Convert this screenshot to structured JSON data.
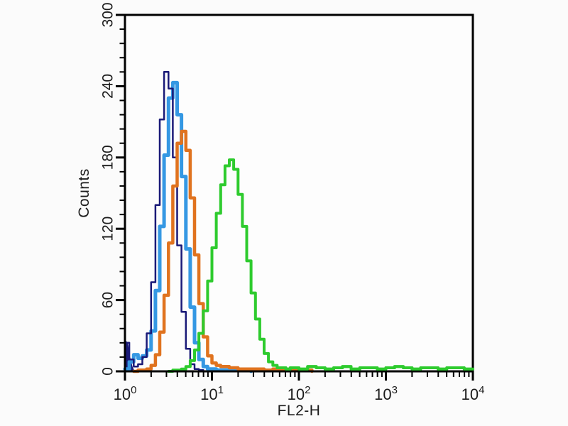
{
  "page": {
    "background": "#fbfbfb",
    "plot_background": "#fdfdfd",
    "axis_color": "#000000",
    "text_color": "#1c1c1c"
  },
  "chart_data": {
    "type": "line",
    "variant": "flow-cytometry-histogram-overlay",
    "title": "",
    "xlabel": "FL2-H",
    "ylabel": "Counts",
    "grid": false,
    "legend": "none",
    "x_scale": "log10",
    "x_range_log10": [
      0,
      4
    ],
    "x_ticks": [
      {
        "base": "10",
        "exp": "0"
      },
      {
        "base": "10",
        "exp": "1"
      },
      {
        "base": "10",
        "exp": "2"
      },
      {
        "base": "10",
        "exp": "3"
      },
      {
        "base": "10",
        "exp": "4"
      }
    ],
    "ylim": [
      0,
      300
    ],
    "y_ticks": [
      0,
      60,
      120,
      180,
      240,
      300
    ],
    "y_minor_step": 12,
    "series": [
      {
        "name": "light-blue",
        "color": "#3598e3",
        "stroke_width": 5,
        "peak": {
          "x": 3.5,
          "counts": 243
        },
        "points": [
          [
            0,
            2
          ],
          [
            0.05,
            8
          ],
          [
            0.1,
            14
          ],
          [
            0.15,
            11
          ],
          [
            0.2,
            13
          ],
          [
            0.25,
            18
          ],
          [
            0.3,
            34
          ],
          [
            0.35,
            68
          ],
          [
            0.4,
            122
          ],
          [
            0.45,
            182
          ],
          [
            0.5,
            230
          ],
          [
            0.55,
            243
          ],
          [
            0.6,
            216
          ],
          [
            0.65,
            164
          ],
          [
            0.7,
            103
          ],
          [
            0.75,
            54
          ],
          [
            0.8,
            24
          ],
          [
            0.85,
            10
          ],
          [
            0.9,
            4
          ],
          [
            0.95,
            2
          ],
          [
            1.05,
            1
          ],
          [
            1.15,
            1
          ],
          [
            1.25,
            1
          ],
          [
            1.35,
            1
          ],
          [
            1.45,
            0
          ]
        ]
      },
      {
        "name": "navy",
        "color": "#1a1a78",
        "stroke_width": 2.5,
        "peak": {
          "x": 2.9,
          "counts": 252
        },
        "points": [
          [
            0,
            24
          ],
          [
            0.05,
            10
          ],
          [
            0.1,
            4
          ],
          [
            0.15,
            6
          ],
          [
            0.2,
            12
          ],
          [
            0.25,
            32
          ],
          [
            0.3,
            75
          ],
          [
            0.35,
            140
          ],
          [
            0.4,
            212
          ],
          [
            0.45,
            252
          ],
          [
            0.5,
            238
          ],
          [
            0.55,
            180
          ],
          [
            0.6,
            106
          ],
          [
            0.65,
            50
          ],
          [
            0.7,
            19
          ],
          [
            0.75,
            6
          ],
          [
            0.8,
            2
          ],
          [
            0.85,
            1
          ],
          [
            0.9,
            0
          ],
          [
            1.0,
            0
          ]
        ]
      },
      {
        "name": "orange",
        "color": "#e0731f",
        "stroke_width": 4.5,
        "peak": {
          "x": 4.5,
          "counts": 202
        },
        "points": [
          [
            0.1,
            0
          ],
          [
            0.15,
            1
          ],
          [
            0.2,
            1
          ],
          [
            0.25,
            2
          ],
          [
            0.3,
            5
          ],
          [
            0.35,
            14
          ],
          [
            0.4,
            33
          ],
          [
            0.45,
            64
          ],
          [
            0.5,
            108
          ],
          [
            0.55,
            156
          ],
          [
            0.6,
            192
          ],
          [
            0.65,
            202
          ],
          [
            0.7,
            186
          ],
          [
            0.75,
            146
          ],
          [
            0.8,
            98
          ],
          [
            0.85,
            57
          ],
          [
            0.9,
            29
          ],
          [
            0.95,
            13
          ],
          [
            1.0,
            7
          ],
          [
            1.05,
            5
          ],
          [
            1.1,
            4
          ],
          [
            1.2,
            3
          ],
          [
            1.3,
            2
          ],
          [
            1.4,
            2
          ],
          [
            1.5,
            2
          ],
          [
            1.6,
            1
          ],
          [
            1.7,
            2
          ],
          [
            1.8,
            1
          ],
          [
            1.9,
            1
          ],
          [
            2.0,
            1
          ],
          [
            2.1,
            1
          ],
          [
            2.15,
            0
          ]
        ]
      },
      {
        "name": "green",
        "color": "#2ecb2e",
        "stroke_width": 4,
        "peak": {
          "x": 15.8,
          "counts": 178
        },
        "points": [
          [
            0.5,
            0
          ],
          [
            0.55,
            1
          ],
          [
            0.6,
            1
          ],
          [
            0.65,
            2
          ],
          [
            0.7,
            4
          ],
          [
            0.75,
            9
          ],
          [
            0.8,
            18
          ],
          [
            0.85,
            32
          ],
          [
            0.9,
            51
          ],
          [
            0.95,
            76
          ],
          [
            1.0,
            104
          ],
          [
            1.05,
            133
          ],
          [
            1.1,
            157
          ],
          [
            1.15,
            173
          ],
          [
            1.2,
            178
          ],
          [
            1.25,
            170
          ],
          [
            1.3,
            149
          ],
          [
            1.35,
            122
          ],
          [
            1.4,
            93
          ],
          [
            1.45,
            66
          ],
          [
            1.5,
            44
          ],
          [
            1.55,
            27
          ],
          [
            1.6,
            15
          ],
          [
            1.65,
            8
          ],
          [
            1.7,
            5
          ],
          [
            1.75,
            3
          ],
          [
            1.8,
            3
          ],
          [
            1.85,
            2
          ],
          [
            1.9,
            3
          ],
          [
            2.0,
            2
          ],
          [
            2.1,
            4
          ],
          [
            2.2,
            3
          ],
          [
            2.3,
            2
          ],
          [
            2.4,
            3
          ],
          [
            2.5,
            4
          ],
          [
            2.6,
            2
          ],
          [
            2.7,
            3
          ],
          [
            2.8,
            3
          ],
          [
            2.9,
            2
          ],
          [
            3.0,
            3
          ],
          [
            3.1,
            4
          ],
          [
            3.2,
            3
          ],
          [
            3.3,
            2
          ],
          [
            3.4,
            3
          ],
          [
            3.5,
            3
          ],
          [
            3.6,
            2
          ],
          [
            3.7,
            3
          ],
          [
            3.8,
            3
          ],
          [
            3.9,
            2
          ],
          [
            4.0,
            2
          ]
        ]
      }
    ],
    "edge_spike": {
      "series": "navy",
      "color": "#1a1a78",
      "points": [
        [
          0,
          0
        ],
        [
          0,
          26
        ],
        [
          0.025,
          24
        ],
        [
          0.05,
          13
        ],
        [
          0.08,
          4
        ],
        [
          0.105,
          0
        ]
      ]
    }
  }
}
